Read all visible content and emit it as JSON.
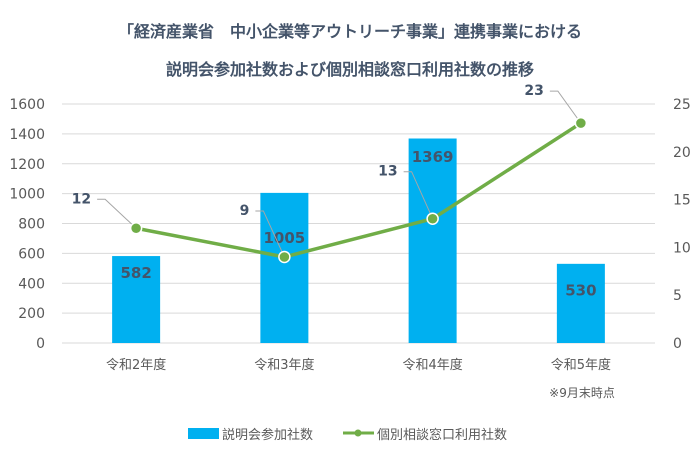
{
  "chart_data": {
    "type": "bar+line",
    "title_line1": "「経済産業省　中小企業等アウトリーチ事業」連携事業における",
    "title_line2": "説明会参加社数および個別相談窓口利用社数の推移",
    "categories": [
      "令和2年度",
      "令和3年度",
      "令和4年度",
      "令和5年度"
    ],
    "note": "※9月末時点",
    "series": [
      {
        "name": "説明会参加社数",
        "type": "bar",
        "axis": "left",
        "values": [
          582,
          1005,
          1369,
          530
        ],
        "color": "#00b0f0"
      },
      {
        "name": "個別相談窓口利用社数",
        "type": "line",
        "axis": "right",
        "values": [
          12,
          9,
          13,
          23
        ],
        "color": "#70ad47"
      }
    ],
    "left_axis": {
      "ylim": [
        0,
        1600
      ],
      "ticks": [
        "0",
        "200",
        "400",
        "600",
        "800",
        "1000",
        "1200",
        "1400",
        "1600"
      ]
    },
    "right_axis": {
      "ylim": [
        0,
        25
      ],
      "ticks": [
        "0",
        "5",
        "10",
        "15",
        "20",
        "25"
      ]
    },
    "grid": true,
    "legend": "bottom"
  }
}
